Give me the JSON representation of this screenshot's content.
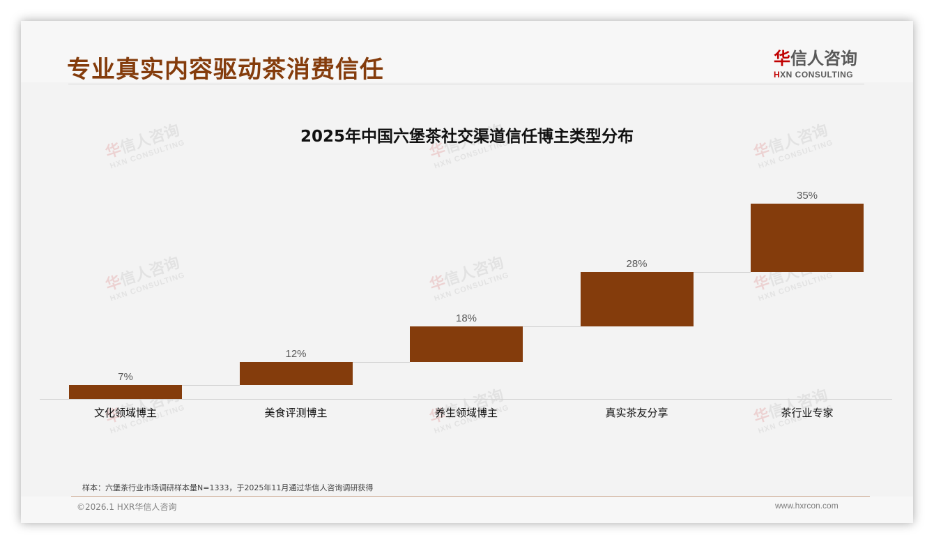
{
  "header": {
    "title": "专业真实内容驱动茶消费信任",
    "logo": {
      "cn_highlight": "华",
      "cn_rest": "信人咨询",
      "en_highlight": "H",
      "en_rest": "XN CONSULTING"
    }
  },
  "watermark": {
    "cn_highlight": "华",
    "cn_rest": "信人咨询",
    "en": "HXN CONSULTING"
  },
  "colors": {
    "bar": "#843c0c",
    "title": "#843c0c",
    "logo_accent": "#c00000"
  },
  "chart_data": {
    "type": "bar",
    "subtype": "waterfall",
    "title": "2025年中国六堡茶社交渠道信任博主类型分布",
    "categories": [
      "文化领域博主",
      "美食评测博主",
      "养生领域博主",
      "真实茶友分享",
      "茶行业专家"
    ],
    "values": [
      7,
      12,
      18,
      28,
      35
    ],
    "value_labels": [
      "7%",
      "12%",
      "18%",
      "28%",
      "35%"
    ],
    "xlabel": "",
    "ylabel": "",
    "unit": "%",
    "grid": false,
    "legend": null
  },
  "footer": {
    "note": "样本：六堡茶行业市场调研样本量N=1333，于2025年11月通过华信人咨询调研获得",
    "copyright": "©2026.1 HXR华信人咨询",
    "website": "www.hxrcon.com"
  }
}
